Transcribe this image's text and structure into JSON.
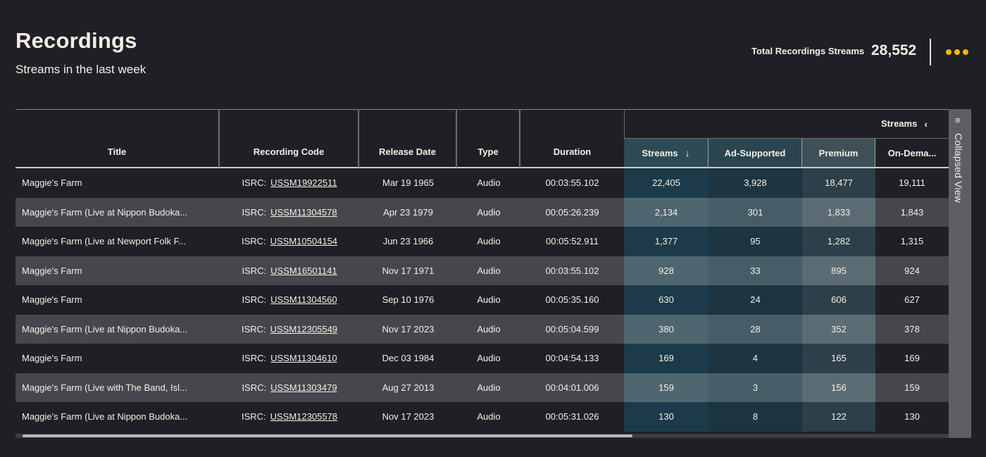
{
  "header": {
    "title": "Recordings",
    "subtitle": "Streams in the last week",
    "total_label": "Total Recordings Streams",
    "total_value": "28,552",
    "more_icon": "more-horizontal-icon",
    "accent_color": "#f5b800"
  },
  "table": {
    "columns": {
      "title": "Title",
      "recording_code": "Recording Code",
      "release_date": "Release Date",
      "type": "Type",
      "duration": "Duration"
    },
    "streams_group": {
      "label": "Streams",
      "collapse_icon": "chevron-left-icon",
      "columns": {
        "streams": "Streams",
        "ad_supported": "Ad-Supported",
        "premium": "Premium",
        "on_demand": "On-Dema..."
      },
      "sort_icon": "arrow-down-icon"
    },
    "isrc_prefix": "ISRC:",
    "rows": [
      {
        "title": "Maggie's Farm",
        "code": "USSM19922511",
        "date": "Mar 19 1965",
        "type": "Audio",
        "duration": "00:03:55.102",
        "streams": "22,405",
        "ad": "3,928",
        "premium": "18,477",
        "ondemand": "19,111"
      },
      {
        "title": "Maggie's Farm (Live at Nippon Budoka...",
        "code": "USSM11304578",
        "date": "Apr 23 1979",
        "type": "Audio",
        "duration": "00:05:26.239",
        "streams": "2,134",
        "ad": "301",
        "premium": "1,833",
        "ondemand": "1,843"
      },
      {
        "title": "Maggie's Farm (Live at Newport Folk F...",
        "code": "USSM10504154",
        "date": "Jun 23 1966",
        "type": "Audio",
        "duration": "00:05:52.911",
        "streams": "1,377",
        "ad": "95",
        "premium": "1,282",
        "ondemand": "1,315"
      },
      {
        "title": "Maggie's Farm",
        "code": "USSM16501141",
        "date": "Nov 17 1971",
        "type": "Audio",
        "duration": "00:03:55.102",
        "streams": "928",
        "ad": "33",
        "premium": "895",
        "ondemand": "924"
      },
      {
        "title": "Maggie's Farm",
        "code": "USSM11304560",
        "date": "Sep 10 1976",
        "type": "Audio",
        "duration": "00:05:35.160",
        "streams": "630",
        "ad": "24",
        "premium": "606",
        "ondemand": "627"
      },
      {
        "title": "Maggie's Farm (Live at Nippon Budoka...",
        "code": "USSM12305549",
        "date": "Nov 17 2023",
        "type": "Audio",
        "duration": "00:05:04.599",
        "streams": "380",
        "ad": "28",
        "premium": "352",
        "ondemand": "378"
      },
      {
        "title": "Maggie's Farm",
        "code": "USSM11304610",
        "date": "Dec 03 1984",
        "type": "Audio",
        "duration": "00:04:54.133",
        "streams": "169",
        "ad": "4",
        "premium": "165",
        "ondemand": "169"
      },
      {
        "title": "Maggie's Farm (Live with The Band, Isl...",
        "code": "USSM11303479",
        "date": "Aug 27 2013",
        "type": "Audio",
        "duration": "00:04:01.006",
        "streams": "159",
        "ad": "3",
        "premium": "156",
        "ondemand": "159"
      },
      {
        "title": "Maggie's Farm (Live at Nippon Budoka...",
        "code": "USSM12305578",
        "date": "Nov 17 2023",
        "type": "Audio",
        "duration": "00:05:31.026",
        "streams": "130",
        "ad": "8",
        "premium": "122",
        "ondemand": "130"
      }
    ]
  },
  "side_panel": {
    "label": "Collapsed View",
    "icon": "columns-collapse-icon"
  },
  "colors": {
    "background": "#1f2025",
    "row_alt": "#46474c",
    "streams_col_dark": "#1c3a49",
    "streams_col_light": "#4e6670",
    "ad_col_dark": "#1c3541",
    "ad_col_light": "#465d67",
    "premium_col_dark": "#2d4049",
    "premium_col_light": "#5b6c74",
    "header_streams": "#2e4a57",
    "header_ad": "#2a4550",
    "header_premium": "#3f5058",
    "header_ondemand": "#1f2025"
  }
}
